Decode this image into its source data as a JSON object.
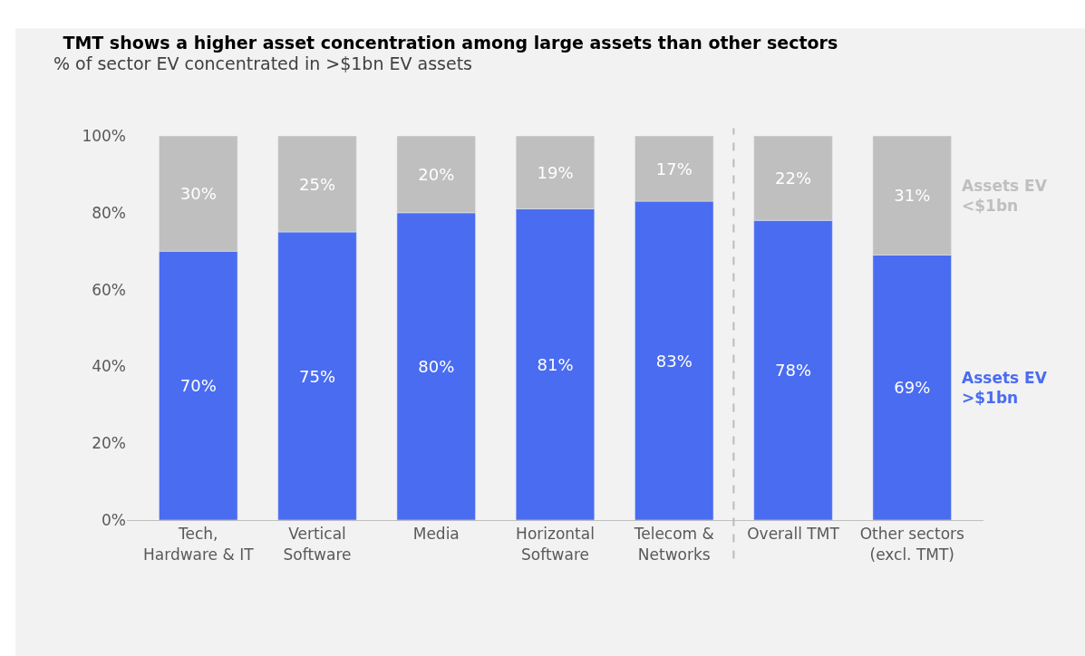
{
  "chart_data": {
    "type": "bar",
    "stacked": true,
    "title": "TMT shows a higher asset concentration among large assets than other sectors",
    "subtitle": "% of sector EV concentrated in >$1bn EV assets",
    "categories": [
      "Tech,\nHardware & IT",
      "Vertical\nSoftware",
      "Media",
      "Horizontal\nSoftware",
      "Telecom &\nNetworks",
      "Overall TMT",
      "Other sectors\n(excl. TMT)"
    ],
    "series": [
      {
        "name": "Assets EV\n>$1bn",
        "color": "#4a6cf0",
        "values": [
          70,
          75,
          80,
          81,
          83,
          78,
          69
        ],
        "value_labels": [
          "70%",
          "75%",
          "80%",
          "81%",
          "83%",
          "78%",
          "69%"
        ]
      },
      {
        "name": "Assets EV\n<$1bn",
        "color": "#bfbfbf",
        "values": [
          30,
          25,
          20,
          19,
          17,
          22,
          31
        ],
        "value_labels": [
          "30%",
          "25%",
          "20%",
          "19%",
          "17%",
          "22%",
          "31%"
        ]
      }
    ],
    "ylim": [
      0,
      100
    ],
    "yticks": [
      {
        "value": 0,
        "label": "0%"
      },
      {
        "value": 20,
        "label": "20%"
      },
      {
        "value": 40,
        "label": "40%"
      },
      {
        "value": 60,
        "label": "60%"
      },
      {
        "value": 80,
        "label": "80%"
      },
      {
        "value": 100,
        "label": "100%"
      }
    ],
    "grid": false
  }
}
